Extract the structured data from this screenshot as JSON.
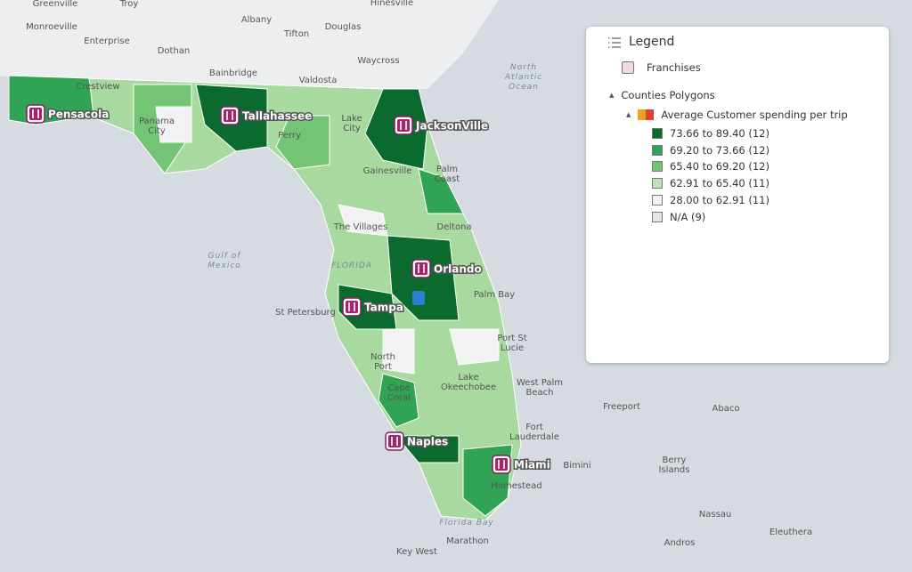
{
  "legend": {
    "title": "Legend",
    "franchises": "Franchises",
    "group": "Counties Polygons",
    "layer": "Average Customer spending per trip",
    "classes": [
      {
        "label": "73.66 to 89.40 (12)",
        "color": "#0b6b2e"
      },
      {
        "label": "69.20 to 73.66 (12)",
        "color": "#31a354"
      },
      {
        "label": "65.40 to 69.20 (12)",
        "color": "#74c476"
      },
      {
        "label": "62.91 to 65.40 (11)",
        "color": "#bae4b3"
      },
      {
        "label": "28.00 to 62.91 (11)",
        "color": "#f2f2f2"
      },
      {
        "label": "N/A (9)",
        "color": "#e6e6e6"
      }
    ]
  },
  "franchises": [
    "Pensacola",
    "Tallahassee",
    "JacksonVille",
    "Orlando",
    "Tampa",
    "Naples",
    "Miami"
  ],
  "place_labels": [
    [
      "Greenville"
    ],
    [
      "Troy"
    ],
    [
      "Hinesville"
    ],
    [
      "Monroeville"
    ],
    [
      "Albany"
    ],
    [
      "Tifton"
    ],
    [
      "Douglas"
    ],
    [
      "Enterprise"
    ],
    [
      "Dothan"
    ],
    [
      "Waycross"
    ],
    [
      "Bainbridge"
    ],
    [
      "Valdosta"
    ],
    [
      "Crestview"
    ],
    [
      "Panama",
      "City"
    ],
    [
      "Perry"
    ],
    [
      "Lake",
      "City"
    ],
    [
      "Gainesville"
    ],
    [
      "Palm",
      "Coast"
    ],
    [
      "The Villages"
    ],
    [
      "Deltona"
    ],
    [
      "Palm Bay"
    ],
    [
      "St Petersburg"
    ],
    [
      "Port St",
      "Lucie"
    ],
    [
      "North",
      "Port"
    ],
    [
      "West Palm",
      "Beach"
    ],
    [
      "Cape",
      "Coral"
    ],
    [
      "Lake",
      "Okeechobee"
    ],
    [
      "Freeport"
    ],
    [
      "Abaco"
    ],
    [
      "Fort",
      "Lauderdale"
    ],
    [
      "Bimini"
    ],
    [
      "Berry",
      "Islands"
    ],
    [
      "Homestead"
    ],
    [
      "Nassau"
    ],
    [
      "Marathon"
    ],
    [
      "Andros"
    ],
    [
      "Eleuthera"
    ],
    [
      "Key West"
    ]
  ],
  "water_labels": [
    [
      "North",
      "Atlantic",
      "Ocean"
    ],
    [
      "Gulf of",
      "Mexico"
    ],
    [
      "FLORIDA"
    ],
    [
      "Florida Bay"
    ]
  ]
}
